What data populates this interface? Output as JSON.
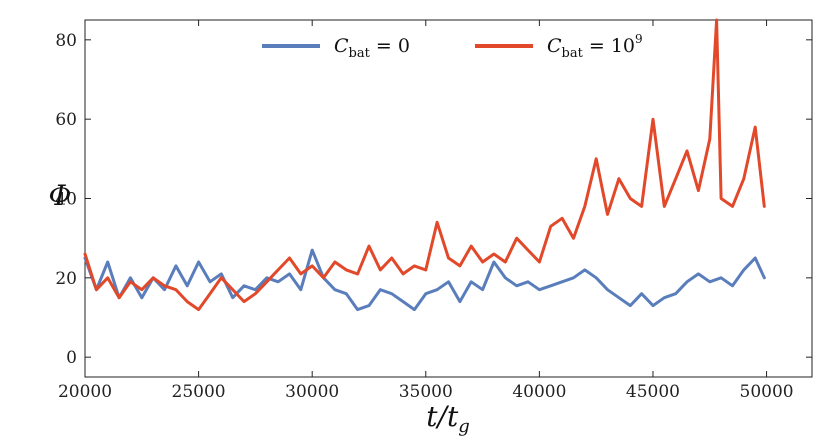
{
  "chart_data": {
    "type": "line",
    "xlabel": "t/t_g",
    "ylabel": "Φ",
    "xlim": [
      20000,
      52000
    ],
    "ylim": [
      -5,
      85
    ],
    "xticks": [
      20000,
      25000,
      30000,
      35000,
      40000,
      45000,
      50000
    ],
    "yticks": [
      0,
      20,
      40,
      60,
      80
    ],
    "grid": false,
    "legend_position": "top-center",
    "legend": [
      {
        "base": "C",
        "sub": "bat",
        "rest": " = 0"
      },
      {
        "base": "C",
        "sub": "bat",
        "rest": " = 10",
        "sup": "9"
      }
    ],
    "series": [
      {
        "name": "C_bat = 0",
        "color": "#5a7dbb",
        "points": [
          [
            20000,
            25
          ],
          [
            20500,
            17
          ],
          [
            21000,
            24
          ],
          [
            21500,
            15
          ],
          [
            22000,
            20
          ],
          [
            22500,
            15
          ],
          [
            23000,
            20
          ],
          [
            23500,
            17
          ],
          [
            24000,
            23
          ],
          [
            24500,
            18
          ],
          [
            25000,
            24
          ],
          [
            25500,
            19
          ],
          [
            26000,
            21
          ],
          [
            26500,
            15
          ],
          [
            27000,
            18
          ],
          [
            27500,
            17
          ],
          [
            28000,
            20
          ],
          [
            28500,
            19
          ],
          [
            29000,
            21
          ],
          [
            29500,
            17
          ],
          [
            30000,
            27
          ],
          [
            30500,
            20
          ],
          [
            31000,
            17
          ],
          [
            31500,
            16
          ],
          [
            32000,
            12
          ],
          [
            32500,
            13
          ],
          [
            33000,
            17
          ],
          [
            33500,
            16
          ],
          [
            34000,
            14
          ],
          [
            34500,
            12
          ],
          [
            35000,
            16
          ],
          [
            35500,
            17
          ],
          [
            36000,
            19
          ],
          [
            36500,
            14
          ],
          [
            37000,
            19
          ],
          [
            37500,
            17
          ],
          [
            38000,
            24
          ],
          [
            38500,
            20
          ],
          [
            39000,
            18
          ],
          [
            39500,
            19
          ],
          [
            40000,
            17
          ],
          [
            40500,
            18
          ],
          [
            41000,
            19
          ],
          [
            41500,
            20
          ],
          [
            42000,
            22
          ],
          [
            42500,
            20
          ],
          [
            43000,
            17
          ],
          [
            43500,
            15
          ],
          [
            44000,
            13
          ],
          [
            44500,
            16
          ],
          [
            45000,
            13
          ],
          [
            45500,
            15
          ],
          [
            46000,
            16
          ],
          [
            46500,
            19
          ],
          [
            47000,
            21
          ],
          [
            47500,
            19
          ],
          [
            48000,
            20
          ],
          [
            48500,
            18
          ],
          [
            49000,
            22
          ],
          [
            49500,
            25
          ],
          [
            49900,
            20
          ]
        ]
      },
      {
        "name": "C_bat = 10^9",
        "color": "#e2482a",
        "points": [
          [
            20000,
            26
          ],
          [
            20500,
            17
          ],
          [
            21000,
            20
          ],
          [
            21500,
            15
          ],
          [
            22000,
            19
          ],
          [
            22500,
            17
          ],
          [
            23000,
            20
          ],
          [
            23500,
            18
          ],
          [
            24000,
            17
          ],
          [
            24500,
            14
          ],
          [
            25000,
            12
          ],
          [
            25500,
            16
          ],
          [
            26000,
            20
          ],
          [
            26500,
            17
          ],
          [
            27000,
            14
          ],
          [
            27500,
            16
          ],
          [
            28000,
            19
          ],
          [
            28500,
            22
          ],
          [
            29000,
            25
          ],
          [
            29500,
            21
          ],
          [
            30000,
            23
          ],
          [
            30500,
            20
          ],
          [
            31000,
            24
          ],
          [
            31500,
            22
          ],
          [
            32000,
            21
          ],
          [
            32500,
            28
          ],
          [
            33000,
            22
          ],
          [
            33500,
            25
          ],
          [
            34000,
            21
          ],
          [
            34500,
            23
          ],
          [
            35000,
            22
          ],
          [
            35500,
            34
          ],
          [
            36000,
            25
          ],
          [
            36500,
            23
          ],
          [
            37000,
            28
          ],
          [
            37500,
            24
          ],
          [
            38000,
            26
          ],
          [
            38500,
            24
          ],
          [
            39000,
            30
          ],
          [
            39500,
            27
          ],
          [
            40000,
            24
          ],
          [
            40500,
            33
          ],
          [
            41000,
            35
          ],
          [
            41500,
            30
          ],
          [
            42000,
            38
          ],
          [
            42500,
            50
          ],
          [
            43000,
            36
          ],
          [
            43500,
            45
          ],
          [
            44000,
            40
          ],
          [
            44500,
            38
          ],
          [
            45000,
            60
          ],
          [
            45500,
            38
          ],
          [
            46000,
            45
          ],
          [
            46500,
            52
          ],
          [
            47000,
            42
          ],
          [
            47500,
            55
          ],
          [
            47800,
            85
          ],
          [
            48000,
            40
          ],
          [
            48500,
            38
          ],
          [
            49000,
            45
          ],
          [
            49500,
            58
          ],
          [
            49900,
            38
          ]
        ]
      }
    ]
  }
}
